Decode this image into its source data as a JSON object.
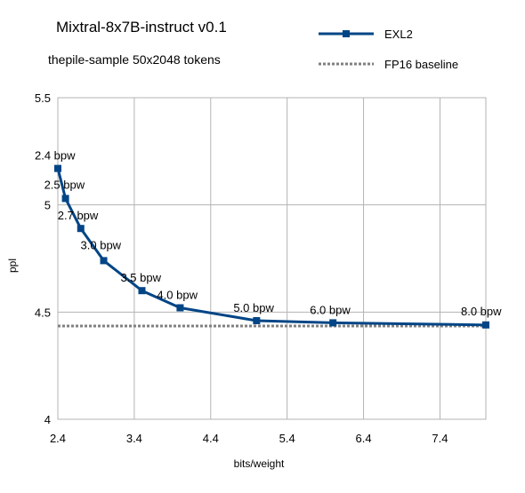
{
  "chart_data": {
    "type": "line",
    "title": "Mixtral-8x7B-instruct v0.1",
    "subtitle": "thepile-sample 50x2048 tokens",
    "xlabel": "bits/weight",
    "ylabel": "ppl",
    "xlim": [
      2.4,
      8.0
    ],
    "ylim": [
      4.0,
      5.5
    ],
    "x_ticks": [
      "2.4",
      "3.4",
      "4.4",
      "5.4",
      "6.4",
      "7.4"
    ],
    "x_tick_values": [
      2.4,
      3.4,
      4.4,
      5.4,
      6.4,
      7.4
    ],
    "y_ticks": [
      "4",
      "4.5",
      "5",
      "5.5"
    ],
    "y_tick_values": [
      4.0,
      4.5,
      5.0,
      5.5
    ],
    "grid": true,
    "legend_position": "top-right",
    "series": [
      {
        "name": "EXL2",
        "color": "#004586",
        "style": "solid-line-square-markers",
        "x": [
          2.4,
          2.5,
          2.7,
          3.0,
          3.5,
          4.0,
          5.0,
          6.0,
          8.0
        ],
        "y": [
          5.17,
          5.03,
          4.89,
          4.74,
          4.6,
          4.52,
          4.46,
          4.45,
          4.44
        ],
        "labels": [
          "2.4 bpw",
          "2.5 bpw",
          "2.7 bpw",
          "3.0 bpw",
          "3.5 bpw",
          "4.0 bpw",
          "5.0 bpw",
          "6.0 bpw",
          "8.0 bpw"
        ]
      },
      {
        "name": "FP16 baseline",
        "color": "#808080",
        "style": "dotted",
        "x": [
          2.4,
          8.0
        ],
        "y": [
          4.435,
          4.435
        ]
      }
    ]
  }
}
